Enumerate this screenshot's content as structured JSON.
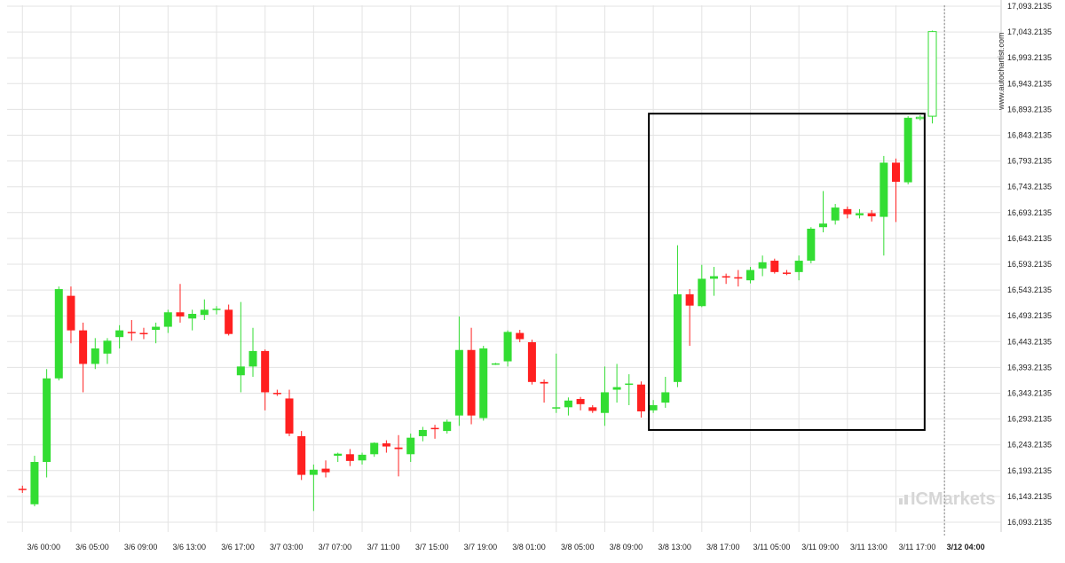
{
  "chart_data": {
    "type": "candlestick",
    "source_label": "www.autochartist.com",
    "logo": "ICMarkets",
    "y_ticks": [
      "17,093.2135",
      "17,043.2135",
      "16,993.2135",
      "16,943.2135",
      "16,893.2135",
      "16,843.2135",
      "16,793.2135",
      "16,743.2135",
      "16,693.2135",
      "16,643.2135",
      "16,593.2135",
      "16,543.2135",
      "16,493.2135",
      "16,443.2135",
      "16,393.2135",
      "16,343.2135",
      "16,293.2135",
      "16,243.2135",
      "16,193.2135",
      "16,143.2135",
      "16,093.2135"
    ],
    "ylim": [
      16080,
      17100
    ],
    "x_ticks": [
      {
        "label": "3/6 00:00",
        "index": 1
      },
      {
        "label": "3/6 05:00",
        "index": 5
      },
      {
        "label": "3/6 09:00",
        "index": 9
      },
      {
        "label": "3/6 13:00",
        "index": 13
      },
      {
        "label": "3/6 17:00",
        "index": 17
      },
      {
        "label": "3/7 03:00",
        "index": 21
      },
      {
        "label": "3/7 07:00",
        "index": 25
      },
      {
        "label": "3/7 11:00",
        "index": 29
      },
      {
        "label": "3/7 15:00",
        "index": 33
      },
      {
        "label": "3/7 19:00",
        "index": 37
      },
      {
        "label": "3/8 01:00",
        "index": 41
      },
      {
        "label": "3/8 05:00",
        "index": 45
      },
      {
        "label": "3/8 09:00",
        "index": 49
      },
      {
        "label": "3/8 13:00",
        "index": 53
      },
      {
        "label": "3/8 17:00",
        "index": 57
      },
      {
        "label": "3/11 05:00",
        "index": 61
      },
      {
        "label": "3/11 09:00",
        "index": 65
      },
      {
        "label": "3/11 13:00",
        "index": 69
      },
      {
        "label": "3/11 17:00",
        "index": 73
      },
      {
        "label": "3/12 04:00",
        "index": 77,
        "bold": true
      }
    ],
    "candles": [
      {
        "o": 16158,
        "h": 16164,
        "l": 16150,
        "c": 16156
      },
      {
        "o": 16128,
        "h": 16222,
        "l": 16124,
        "c": 16210
      },
      {
        "o": 16210,
        "h": 16390,
        "l": 16180,
        "c": 16372
      },
      {
        "o": 16372,
        "h": 16550,
        "l": 16368,
        "c": 16545
      },
      {
        "o": 16532,
        "h": 16550,
        "l": 16440,
        "c": 16465
      },
      {
        "o": 16465,
        "h": 16480,
        "l": 16345,
        "c": 16400
      },
      {
        "o": 16400,
        "h": 16450,
        "l": 16390,
        "c": 16430
      },
      {
        "o": 16420,
        "h": 16450,
        "l": 16400,
        "c": 16445
      },
      {
        "o": 16452,
        "h": 16475,
        "l": 16430,
        "c": 16465
      },
      {
        "o": 16462,
        "h": 16485,
        "l": 16445,
        "c": 16460
      },
      {
        "o": 16460,
        "h": 16470,
        "l": 16448,
        "c": 16459
      },
      {
        "o": 16466,
        "h": 16480,
        "l": 16440,
        "c": 16472
      },
      {
        "o": 16472,
        "h": 16505,
        "l": 16460,
        "c": 16500
      },
      {
        "o": 16500,
        "h": 16555,
        "l": 16480,
        "c": 16492
      },
      {
        "o": 16488,
        "h": 16505,
        "l": 16465,
        "c": 16497
      },
      {
        "o": 16495,
        "h": 16525,
        "l": 16485,
        "c": 16505
      },
      {
        "o": 16506,
        "h": 16512,
        "l": 16496,
        "c": 16507
      },
      {
        "o": 16505,
        "h": 16515,
        "l": 16455,
        "c": 16458
      },
      {
        "o": 16378,
        "h": 16520,
        "l": 16345,
        "c": 16395
      },
      {
        "o": 16395,
        "h": 16470,
        "l": 16375,
        "c": 16425
      },
      {
        "o": 16425,
        "h": 16428,
        "l": 16310,
        "c": 16345
      },
      {
        "o": 16344,
        "h": 16350,
        "l": 16338,
        "c": 16343
      },
      {
        "o": 16333,
        "h": 16350,
        "l": 16260,
        "c": 16265
      },
      {
        "o": 16260,
        "h": 16270,
        "l": 16175,
        "c": 16185
      },
      {
        "o": 16185,
        "h": 16205,
        "l": 16115,
        "c": 16195
      },
      {
        "o": 16197,
        "h": 16213,
        "l": 16180,
        "c": 16190
      },
      {
        "o": 16222,
        "h": 16228,
        "l": 16210,
        "c": 16226
      },
      {
        "o": 16225,
        "h": 16235,
        "l": 16202,
        "c": 16212
      },
      {
        "o": 16213,
        "h": 16228,
        "l": 16205,
        "c": 16224
      },
      {
        "o": 16225,
        "h": 16248,
        "l": 16220,
        "c": 16247
      },
      {
        "o": 16246,
        "h": 16252,
        "l": 16228,
        "c": 16240
      },
      {
        "o": 16238,
        "h": 16262,
        "l": 16182,
        "c": 16235
      },
      {
        "o": 16225,
        "h": 16265,
        "l": 16210,
        "c": 16257
      },
      {
        "o": 16260,
        "h": 16278,
        "l": 16250,
        "c": 16272
      },
      {
        "o": 16276,
        "h": 16282,
        "l": 16255,
        "c": 16275
      },
      {
        "o": 16270,
        "h": 16292,
        "l": 16265,
        "c": 16288
      },
      {
        "o": 16300,
        "h": 16492,
        "l": 16280,
        "c": 16427
      },
      {
        "o": 16427,
        "h": 16470,
        "l": 16283,
        "c": 16300
      },
      {
        "o": 16295,
        "h": 16435,
        "l": 16290,
        "c": 16430
      },
      {
        "o": 16400,
        "h": 16402,
        "l": 16398,
        "c": 16401
      },
      {
        "o": 16405,
        "h": 16465,
        "l": 16395,
        "c": 16462
      },
      {
        "o": 16460,
        "h": 16466,
        "l": 16442,
        "c": 16448
      },
      {
        "o": 16442,
        "h": 16447,
        "l": 16360,
        "c": 16365
      },
      {
        "o": 16365,
        "h": 16370,
        "l": 16325,
        "c": 16362
      },
      {
        "o": 16315,
        "h": 16420,
        "l": 16305,
        "c": 16316
      },
      {
        "o": 16316,
        "h": 16335,
        "l": 16300,
        "c": 16329
      },
      {
        "o": 16332,
        "h": 16336,
        "l": 16310,
        "c": 16322
      },
      {
        "o": 16316,
        "h": 16320,
        "l": 16305,
        "c": 16309
      },
      {
        "o": 16305,
        "h": 16395,
        "l": 16280,
        "c": 16345
      },
      {
        "o": 16350,
        "h": 16400,
        "l": 16325,
        "c": 16355
      },
      {
        "o": 16360,
        "h": 16380,
        "l": 16320,
        "c": 16362
      },
      {
        "o": 16360,
        "h": 16366,
        "l": 16296,
        "c": 16308
      },
      {
        "o": 16310,
        "h": 16330,
        "l": 16305,
        "c": 16320
      },
      {
        "o": 16325,
        "h": 16375,
        "l": 16315,
        "c": 16345
      },
      {
        "o": 16365,
        "h": 16630,
        "l": 16355,
        "c": 16535
      },
      {
        "o": 16535,
        "h": 16545,
        "l": 16435,
        "c": 16513
      },
      {
        "o": 16512,
        "h": 16592,
        "l": 16510,
        "c": 16565
      },
      {
        "o": 16565,
        "h": 16588,
        "l": 16532,
        "c": 16570
      },
      {
        "o": 16570,
        "h": 16575,
        "l": 16555,
        "c": 16568
      },
      {
        "o": 16568,
        "h": 16582,
        "l": 16550,
        "c": 16566
      },
      {
        "o": 16562,
        "h": 16588,
        "l": 16556,
        "c": 16582
      },
      {
        "o": 16585,
        "h": 16610,
        "l": 16570,
        "c": 16597
      },
      {
        "o": 16600,
        "h": 16604,
        "l": 16575,
        "c": 16578
      },
      {
        "o": 16577,
        "h": 16582,
        "l": 16572,
        "c": 16576
      },
      {
        "o": 16578,
        "h": 16610,
        "l": 16562,
        "c": 16600
      },
      {
        "o": 16600,
        "h": 16665,
        "l": 16595,
        "c": 16662
      },
      {
        "o": 16665,
        "h": 16735,
        "l": 16655,
        "c": 16672
      },
      {
        "o": 16678,
        "h": 16710,
        "l": 16670,
        "c": 16703
      },
      {
        "o": 16700,
        "h": 16705,
        "l": 16682,
        "c": 16690
      },
      {
        "o": 16688,
        "h": 16700,
        "l": 16682,
        "c": 16692
      },
      {
        "o": 16692,
        "h": 16698,
        "l": 16676,
        "c": 16686
      },
      {
        "o": 16685,
        "h": 16803,
        "l": 16610,
        "c": 16790
      },
      {
        "o": 16790,
        "h": 16798,
        "l": 16675,
        "c": 16753
      },
      {
        "o": 16752,
        "h": 16880,
        "l": 16748,
        "c": 16877
      },
      {
        "o": 16877,
        "h": 16882,
        "l": 16872,
        "c": 16878,
        "hollow": true
      },
      {
        "o": 16880,
        "h": 17046,
        "l": 16866,
        "c": 17044,
        "hollow": true
      }
    ],
    "candle_index_offset": 1,
    "pattern_box": {
      "start_index": 53,
      "end_index": 75,
      "top": 16885,
      "bottom": 16272
    },
    "cursor_index": 77,
    "colors": {
      "up": "#33dd33",
      "down": "#ff2020",
      "hollow": "#33dd33",
      "grid": "#e3e3e3",
      "box": "#000000"
    }
  }
}
